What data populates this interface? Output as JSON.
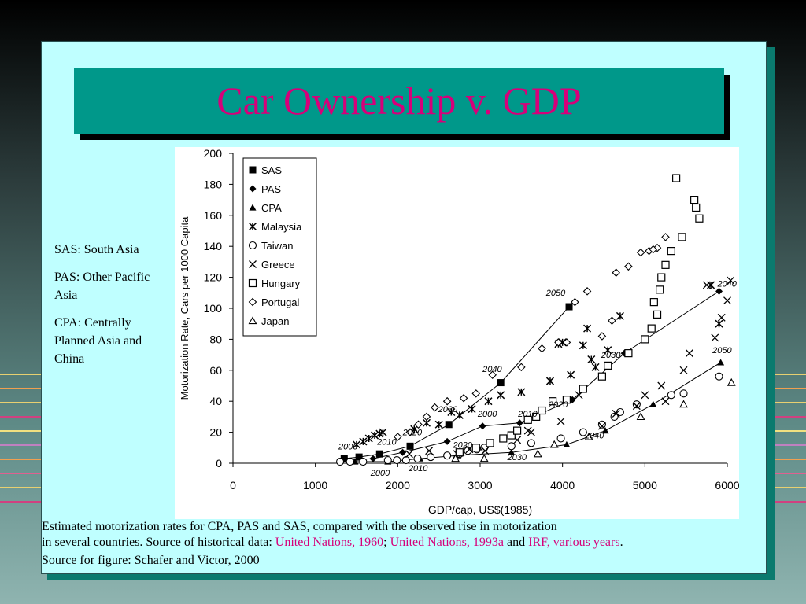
{
  "title": "Car Ownership v. GDP",
  "notes": [
    "SAS: South Asia",
    "PAS: Other Pacific Asia",
    "CPA: Centrally Planned Asia and China"
  ],
  "caption": {
    "line1": "Estimated motorization rates for CPA, PAS and SAS, compared with the observed rise in motorization",
    "line2_prefix": "in several countries. Source of historical data: ",
    "link1": "United Nations, 1960",
    "sep1": "; ",
    "link2": "United Nations, 1993a",
    "sep2": " and ",
    "link3": "IRF, various years",
    "end": ".",
    "line3": "Source for figure:  Schafer and Victor, 2000"
  },
  "colors": {
    "title_text": "#d6007a",
    "title_box": "#00988a",
    "slide_bg": "#bfffff",
    "slide_shadow": "#0a7a6e",
    "link": "#d6007a",
    "deco_lines": [
      "#e8d070",
      "#f0a050",
      "#d04080",
      "#c080c0",
      "#f0e080",
      "#e06090"
    ]
  },
  "chart_data": {
    "type": "scatter",
    "xlabel": "GDP/cap, US$(1985)",
    "ylabel": "Motorization Rate, Cars per 1000 Capita",
    "xlim": [
      0,
      6000
    ],
    "ylim": [
      0,
      200
    ],
    "xticks": [
      0,
      1000,
      2000,
      3000,
      4000,
      5000,
      6000
    ],
    "yticks": [
      0,
      20,
      40,
      60,
      80,
      100,
      120,
      140,
      160,
      180,
      200
    ],
    "legend_position": "top-left",
    "series": [
      {
        "name": "SAS",
        "marker": "square-filled",
        "connected": true,
        "points": [
          [
            1350,
            3
          ],
          [
            1530,
            4
          ],
          [
            1780,
            6
          ],
          [
            2150,
            11
          ],
          [
            2620,
            25
          ],
          [
            3250,
            52
          ],
          [
            4080,
            101
          ]
        ]
      },
      {
        "name": "PAS",
        "marker": "diamond-filled",
        "connected": true,
        "points": [
          [
            1380,
            2
          ],
          [
            1700,
            3
          ],
          [
            2060,
            7
          ],
          [
            2600,
            14
          ],
          [
            3030,
            24
          ],
          [
            3480,
            26
          ],
          [
            4120,
            41
          ],
          [
            4750,
            71
          ],
          [
            5900,
            111
          ]
        ]
      },
      {
        "name": "CPA",
        "marker": "triangle-filled",
        "connected": true,
        "points": [
          [
            1480,
            1
          ],
          [
            1880,
            1
          ],
          [
            2270,
            3
          ],
          [
            2730,
            5
          ],
          [
            3380,
            7
          ],
          [
            4050,
            12
          ],
          [
            4520,
            21
          ],
          [
            5100,
            38
          ],
          [
            5920,
            65
          ]
        ]
      },
      {
        "name": "Malaysia",
        "marker": "asterisk",
        "connected": false,
        "points": [
          [
            1500,
            12
          ],
          [
            1580,
            14
          ],
          [
            1650,
            16
          ],
          [
            1720,
            18
          ],
          [
            1780,
            19
          ],
          [
            1820,
            20
          ],
          [
            2200,
            22
          ],
          [
            2350,
            26
          ],
          [
            2500,
            25
          ],
          [
            2650,
            33
          ],
          [
            2750,
            31
          ],
          [
            2900,
            35
          ],
          [
            3100,
            40
          ],
          [
            3250,
            44
          ],
          [
            3500,
            46
          ],
          [
            3850,
            53
          ],
          [
            3950,
            77
          ],
          [
            4000,
            78
          ],
          [
            4100,
            57
          ],
          [
            4250,
            76
          ],
          [
            4400,
            62
          ],
          [
            4300,
            87
          ],
          [
            4350,
            67
          ],
          [
            4550,
            73
          ],
          [
            4700,
            95
          ],
          [
            5800,
            115
          ],
          [
            5900,
            90
          ]
        ]
      },
      {
        "name": "Taiwan",
        "marker": "circle-open",
        "connected": false,
        "points": [
          [
            1300,
            1
          ],
          [
            1420,
            1
          ],
          [
            1580,
            1
          ],
          [
            1880,
            2
          ],
          [
            1990,
            2
          ],
          [
            2100,
            2
          ],
          [
            2240,
            3
          ],
          [
            2400,
            4
          ],
          [
            2600,
            5
          ],
          [
            2750,
            6
          ],
          [
            2850,
            8
          ],
          [
            2960,
            9
          ],
          [
            3050,
            10
          ],
          [
            3380,
            11
          ],
          [
            3620,
            13
          ],
          [
            3980,
            16
          ],
          [
            4250,
            20
          ],
          [
            4480,
            25
          ],
          [
            4630,
            30
          ],
          [
            4700,
            33
          ],
          [
            4900,
            38
          ],
          [
            5320,
            44
          ],
          [
            5470,
            45
          ],
          [
            5900,
            56
          ]
        ]
      },
      {
        "name": "Greece",
        "marker": "x-cross",
        "connected": false,
        "points": [
          [
            2140,
            6
          ],
          [
            2380,
            8
          ],
          [
            2720,
            6
          ],
          [
            2870,
            9
          ],
          [
            3060,
            8
          ],
          [
            3450,
            15
          ],
          [
            3580,
            21
          ],
          [
            3620,
            20
          ],
          [
            3980,
            27
          ],
          [
            4200,
            44
          ],
          [
            4480,
            24
          ],
          [
            4650,
            32
          ],
          [
            4900,
            37
          ],
          [
            5000,
            44
          ],
          [
            5200,
            50
          ],
          [
            5470,
            60
          ],
          [
            5540,
            71
          ],
          [
            5850,
            81
          ],
          [
            5930,
            94
          ],
          [
            6000,
            105
          ],
          [
            6040,
            118
          ],
          [
            5750,
            115
          ],
          [
            5250,
            40
          ]
        ]
      },
      {
        "name": "Hungary",
        "marker": "square-open",
        "connected": false,
        "points": [
          [
            2750,
            7
          ],
          [
            2950,
            10
          ],
          [
            3120,
            13
          ],
          [
            3280,
            16
          ],
          [
            3380,
            18
          ],
          [
            3450,
            21
          ],
          [
            3580,
            28
          ],
          [
            3680,
            30
          ],
          [
            3750,
            34
          ],
          [
            3880,
            40
          ],
          [
            4050,
            41
          ],
          [
            4250,
            48
          ],
          [
            4480,
            56
          ],
          [
            4550,
            63
          ],
          [
            4800,
            71
          ],
          [
            5000,
            80
          ],
          [
            5150,
            96
          ],
          [
            5080,
            87
          ],
          [
            5110,
            104
          ],
          [
            5180,
            112
          ],
          [
            5200,
            120
          ],
          [
            5250,
            128
          ],
          [
            5320,
            137
          ],
          [
            5380,
            184
          ],
          [
            5450,
            146
          ],
          [
            5600,
            170
          ],
          [
            5620,
            165
          ],
          [
            5660,
            158
          ]
        ]
      },
      {
        "name": "Portugal",
        "marker": "diamond-open",
        "connected": false,
        "points": [
          [
            2000,
            17
          ],
          [
            2150,
            20
          ],
          [
            2250,
            25
          ],
          [
            2350,
            30
          ],
          [
            2450,
            36
          ],
          [
            2600,
            40
          ],
          [
            2800,
            42
          ],
          [
            2950,
            45
          ],
          [
            3150,
            57
          ],
          [
            3500,
            62
          ],
          [
            3750,
            74
          ],
          [
            3950,
            78
          ],
          [
            4050,
            78
          ],
          [
            4150,
            104
          ],
          [
            4300,
            111
          ],
          [
            4480,
            82
          ],
          [
            4600,
            92
          ],
          [
            4650,
            123
          ],
          [
            4800,
            127
          ],
          [
            4950,
            136
          ],
          [
            5050,
            137
          ],
          [
            5150,
            139
          ],
          [
            5100,
            138
          ],
          [
            5250,
            146
          ]
        ]
      },
      {
        "name": "Japan",
        "marker": "triangle-open",
        "connected": false,
        "points": [
          [
            2700,
            3
          ],
          [
            3050,
            3
          ],
          [
            3700,
            6
          ],
          [
            3900,
            12
          ],
          [
            4320,
            17
          ],
          [
            4950,
            30
          ],
          [
            5470,
            38
          ],
          [
            6050,
            52
          ]
        ]
      }
    ],
    "annotations": [
      {
        "text": "2050",
        "x": 3800,
        "y": 108
      },
      {
        "text": "2040",
        "x": 3030,
        "y": 59
      },
      {
        "text": "2030",
        "x": 2490,
        "y": 33
      },
      {
        "text": "2020",
        "x": 2060,
        "y": 18
      },
      {
        "text": "2010",
        "x": 1750,
        "y": 12
      },
      {
        "text": "2000",
        "x": 1280,
        "y": 9
      },
      {
        "text": "2040",
        "x": 5880,
        "y": 114
      },
      {
        "text": "2030",
        "x": 4470,
        "y": 68
      },
      {
        "text": "2020",
        "x": 3830,
        "y": 36
      },
      {
        "text": "2010",
        "x": 3460,
        "y": 30
      },
      {
        "text": "2000",
        "x": 2970,
        "y": 30
      },
      {
        "text": "2050",
        "x": 5820,
        "y": 71
      },
      {
        "text": "2040",
        "x": 4270,
        "y": 16
      },
      {
        "text": "2030",
        "x": 3330,
        "y": 2
      },
      {
        "text": "2020",
        "x": 2670,
        "y": 10
      },
      {
        "text": "2010",
        "x": 2130,
        "y": -5
      },
      {
        "text": "2000",
        "x": 1670,
        "y": -8
      }
    ]
  }
}
